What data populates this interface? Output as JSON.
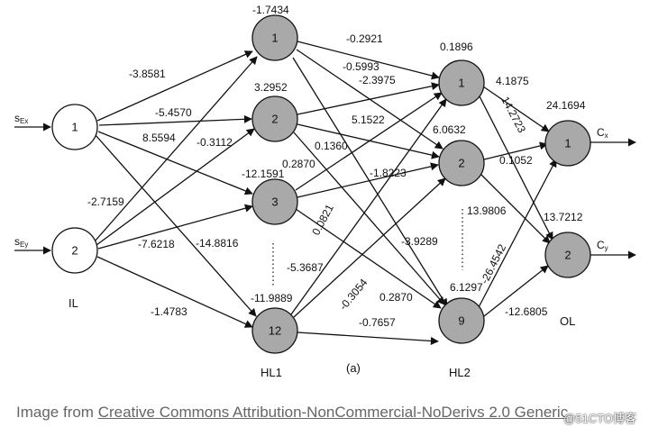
{
  "figure_label": "(a)",
  "layers": {
    "input": {
      "label": "IL",
      "nodes": [
        "1",
        "2"
      ],
      "inputs": [
        "s_Ex",
        "s_Ey"
      ]
    },
    "hidden1": {
      "label": "HL1",
      "nodes": [
        "1",
        "2",
        "3",
        "12"
      ],
      "biases": [
        "-1.7434",
        "3.2952",
        "-12.1591",
        "-11.9889"
      ]
    },
    "hidden2": {
      "label": "HL2",
      "nodes": [
        "1",
        "2",
        "9"
      ],
      "biases": [
        "0.1896",
        "6.0632",
        "6.1297"
      ]
    },
    "output": {
      "label": "OL",
      "nodes": [
        "1",
        "2"
      ],
      "biases": [
        "24.1694",
        "13.7212"
      ],
      "outputs": [
        "C_x",
        "C_y"
      ]
    }
  },
  "weights": {
    "il_hl1": [
      "-3.8581",
      "-5.4570",
      "8.5594",
      "-14.8816",
      "-2.7159",
      "-0.3112",
      "-7.6218",
      "-1.4783"
    ],
    "hl1_hl2": [
      "-0.2921",
      "-0.5993",
      "-2.3975",
      "5.1522",
      "0.1360",
      "-1.8223",
      "0.2870",
      "0.0821",
      "-3.9289",
      "-5.3687",
      "-0.3054",
      "0.2870",
      "-0.7657"
    ],
    "hl2_ol": [
      "4.1875",
      "14.2723",
      "0.1052",
      "13.9806",
      "-26.4542",
      "-12.6805"
    ]
  },
  "caption": {
    "prefix": "Image from ",
    "link": "Creative Commons Attribution-NonCommercial-NoDerivs 2.0 Generic"
  },
  "watermark": "@51CTO博客",
  "colors": {
    "hidden_fill": "#a9a9a9",
    "input_fill": "#ffffff",
    "stroke": "#111111"
  }
}
